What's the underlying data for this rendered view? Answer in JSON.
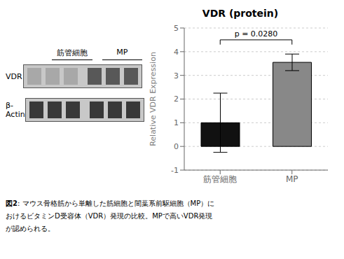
{
  "chart_data": {
    "type": "bar",
    "title": "VDR (protein)",
    "categories": [
      "筋管細胞",
      "MP"
    ],
    "values": [
      1.0,
      3.55
    ],
    "errors": [
      1.25,
      0.35
    ],
    "colors": [
      "#111111",
      "#888888"
    ],
    "ylim": [
      -1,
      5
    ],
    "yticks": [
      -1,
      0,
      1,
      2,
      3,
      4,
      5
    ],
    "ylabel": "Relative VDR Expression",
    "annotations": [
      {
        "text": "p = 0.0280",
        "bracket": [
          4.3,
          4.5
        ]
      }
    ],
    "blot_columns": [
      "筋管細胞",
      "MP"
    ],
    "blot_rows": [
      "VDR",
      "β-Actin"
    ],
    "caption_bold": "図2",
    "caption": [
      "図2: マウス骨格筋から単離した筋細胞と間葉系前駆細胞（MP）に",
      "おけるビタミンD受容体（VDR）発現の比較。MPで高いVDR発現",
      "が認められる。"
    ]
  }
}
